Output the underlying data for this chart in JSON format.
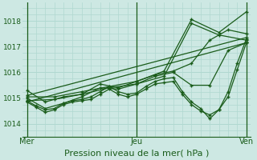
{
  "background_color": "#cde8e3",
  "grid_color": "#b0d8d0",
  "line_color": "#1a5c1a",
  "xlabel": "Pression niveau de la mer( hPa )",
  "xlabel_fontsize": 8,
  "yticks": [
    1014,
    1015,
    1016,
    1017,
    1018
  ],
  "xtick_labels": [
    "Mer",
    "Jeu",
    "Ven"
  ],
  "xtick_positions": [
    0,
    48,
    96
  ],
  "xlim": [
    -2,
    98
  ],
  "ylim": [
    1013.5,
    1018.7
  ],
  "lines": [
    {
      "x": [
        0,
        4,
        8,
        12,
        16,
        20,
        24,
        28,
        32,
        36,
        40,
        44,
        48,
        52,
        56,
        60,
        64,
        68,
        72,
        76,
        80,
        84,
        88,
        92,
        96
      ],
      "y": [
        1014.85,
        1014.65,
        1014.45,
        1014.55,
        1014.75,
        1014.85,
        1014.9,
        1014.95,
        1015.15,
        1015.35,
        1015.15,
        1015.05,
        1015.15,
        1015.35,
        1015.55,
        1015.6,
        1015.65,
        1015.15,
        1014.75,
        1014.5,
        1014.35,
        1014.55,
        1015.05,
        1016.1,
        1017.15
      ]
    },
    {
      "x": [
        0,
        4,
        8,
        12,
        16,
        20,
        24,
        28,
        32,
        36,
        40,
        44,
        48,
        52,
        56,
        60,
        64,
        68,
        72,
        76,
        80,
        84,
        88,
        92,
        96
      ],
      "y": [
        1014.9,
        1014.7,
        1014.55,
        1014.6,
        1014.8,
        1014.9,
        1014.95,
        1015.05,
        1015.25,
        1015.45,
        1015.25,
        1015.15,
        1015.2,
        1015.45,
        1015.65,
        1015.75,
        1015.8,
        1015.25,
        1014.85,
        1014.6,
        1014.2,
        1014.55,
        1015.25,
        1016.35,
        1017.3
      ]
    },
    {
      "x": [
        0,
        8,
        16,
        24,
        32,
        40,
        48,
        56,
        64,
        72,
        80,
        88,
        96
      ],
      "y": [
        1015.0,
        1014.6,
        1014.8,
        1015.05,
        1015.4,
        1015.35,
        1015.55,
        1015.85,
        1016.0,
        1015.5,
        1015.5,
        1016.85,
        1017.15
      ]
    },
    {
      "x": [
        0,
        8,
        16,
        24,
        32,
        40,
        48,
        56,
        64,
        72,
        80,
        88,
        96
      ],
      "y": [
        1015.3,
        1014.85,
        1015.05,
        1015.15,
        1015.55,
        1015.4,
        1015.65,
        1015.9,
        1016.05,
        1016.35,
        1017.25,
        1017.65,
        1017.5
      ]
    },
    {
      "x": [
        0,
        12,
        24,
        36,
        48,
        60,
        72,
        84,
        96
      ],
      "y": [
        1014.9,
        1014.95,
        1015.15,
        1015.4,
        1015.55,
        1015.85,
        1017.9,
        1017.45,
        1017.25
      ]
    },
    {
      "x": [
        0,
        12,
        24,
        36,
        48,
        60,
        72,
        84,
        96
      ],
      "y": [
        1015.05,
        1015.05,
        1015.25,
        1015.45,
        1015.65,
        1016.05,
        1018.05,
        1017.55,
        1018.35
      ]
    },
    {
      "x": [
        0,
        96
      ],
      "y": [
        1014.85,
        1017.15
      ]
    },
    {
      "x": [
        0,
        96
      ],
      "y": [
        1015.1,
        1017.35
      ]
    }
  ]
}
